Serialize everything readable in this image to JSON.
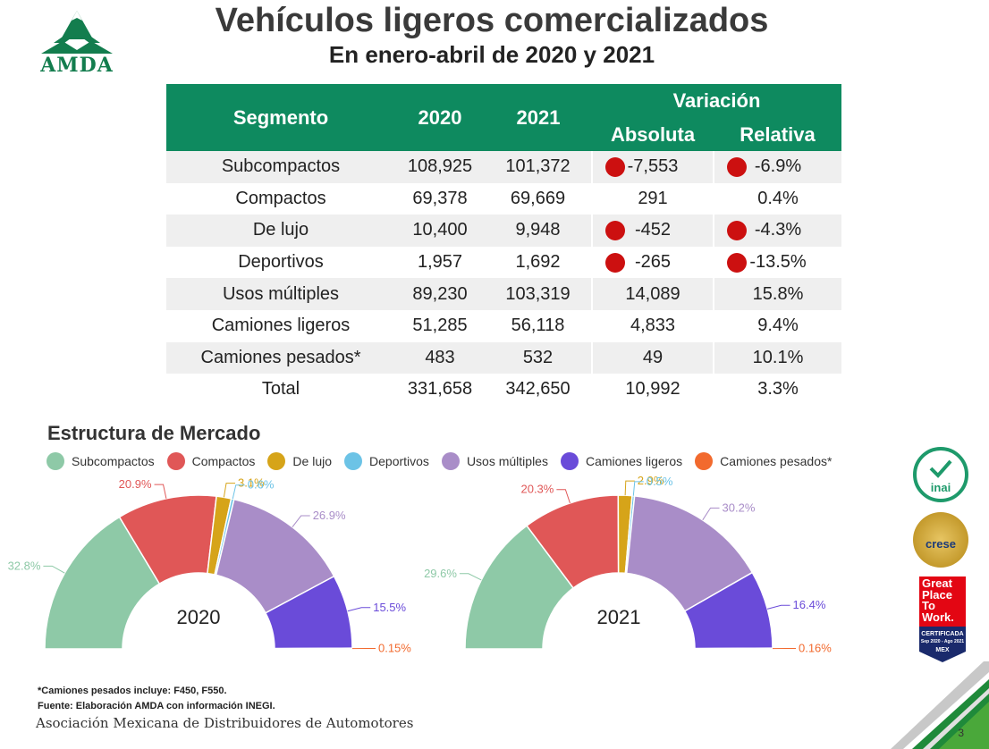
{
  "header": {
    "logo_text": "AMDA",
    "title": "Vehículos ligeros comercializados",
    "subtitle": "En enero-abril de 2020 y 2021"
  },
  "table": {
    "headers": {
      "segmento": "Segmento",
      "y2020": "2020",
      "y2021": "2021",
      "variacion": "Variación",
      "absoluta": "Absoluta",
      "relativa": "Relativa"
    },
    "rows": [
      {
        "segmento": "Subcompactos",
        "y2020": "108,925",
        "y2021": "101,372",
        "absoluta": "-7,553",
        "relativa": "-6.9%",
        "negative": true
      },
      {
        "segmento": "Compactos",
        "y2020": "69,378",
        "y2021": "69,669",
        "absoluta": "291",
        "relativa": "0.4%",
        "negative": false
      },
      {
        "segmento": "De lujo",
        "y2020": "10,400",
        "y2021": "9,948",
        "absoluta": "-452",
        "relativa": "-4.3%",
        "negative": true
      },
      {
        "segmento": "Deportivos",
        "y2020": "1,957",
        "y2021": "1,692",
        "absoluta": "-265",
        "relativa": "-13.5%",
        "negative": true
      },
      {
        "segmento": "Usos múltiples",
        "y2020": "89,230",
        "y2021": "103,319",
        "absoluta": "14,089",
        "relativa": "15.8%",
        "negative": false
      },
      {
        "segmento": "Camiones ligeros",
        "y2020": "51,285",
        "y2021": "56,118",
        "absoluta": "4,833",
        "relativa": "9.4%",
        "negative": false
      },
      {
        "segmento": "Camiones pesados*",
        "y2020": "483",
        "y2021": "532",
        "absoluta": "49",
        "relativa": "10.1%",
        "negative": false
      },
      {
        "segmento": "Total",
        "y2020": "331,658",
        "y2021": "342,650",
        "absoluta": "10,992",
        "relativa": "3.3%",
        "negative": false
      }
    ],
    "negative_color": "#cc1010"
  },
  "market": {
    "title": "Estructura de Mercado"
  },
  "chart_data": [
    {
      "type": "pie",
      "variant": "half-donut",
      "title": "2020",
      "legend_position": "top",
      "categories": [
        "Subcompactos",
        "Compactos",
        "De lujo",
        "Deportivos",
        "Usos múltiples",
        "Camiones ligeros",
        "Camiones pesados*"
      ],
      "colors": [
        "#8ec9a7",
        "#e05757",
        "#d6a419",
        "#6cc3e6",
        "#a98dc8",
        "#6a4bd9",
        "#f26a2e"
      ],
      "values": [
        32.8,
        20.9,
        3.1,
        0.6,
        26.9,
        15.5,
        0.15
      ],
      "labels": [
        "32.8%",
        "20.9%",
        "3.1%",
        "0.6%",
        "26.9%",
        "15.5%",
        "0.15%"
      ]
    },
    {
      "type": "pie",
      "variant": "half-donut",
      "title": "2021",
      "legend_position": "top",
      "categories": [
        "Subcompactos",
        "Compactos",
        "De lujo",
        "Deportivos",
        "Usos múltiples",
        "Camiones ligeros",
        "Camiones pesados*"
      ],
      "colors": [
        "#8ec9a7",
        "#e05757",
        "#d6a419",
        "#6cc3e6",
        "#a98dc8",
        "#6a4bd9",
        "#f26a2e"
      ],
      "values": [
        29.6,
        20.3,
        2.9,
        0.5,
        30.2,
        16.4,
        0.16
      ],
      "labels": [
        "29.6%",
        "20.3%",
        "2.9%",
        "0.5%",
        "30.2%",
        "16.4%",
        "0.16%"
      ]
    }
  ],
  "footer": {
    "note1": "*Camiones pesados incluye: F450, F550.",
    "note2": "Fuente: Elaboración AMDA con información INEGI.",
    "org": "Asociación Mexicana de Distribuidores de Automotores",
    "page": "3"
  },
  "badges": {
    "inai": "inai",
    "crese": "crese",
    "gptw_top": [
      "Great",
      "Place",
      "To",
      "Work."
    ],
    "gptw_bottom": [
      "CERTIFICADA",
      "Sep 2020 - Ago 2021",
      "MEX"
    ]
  }
}
